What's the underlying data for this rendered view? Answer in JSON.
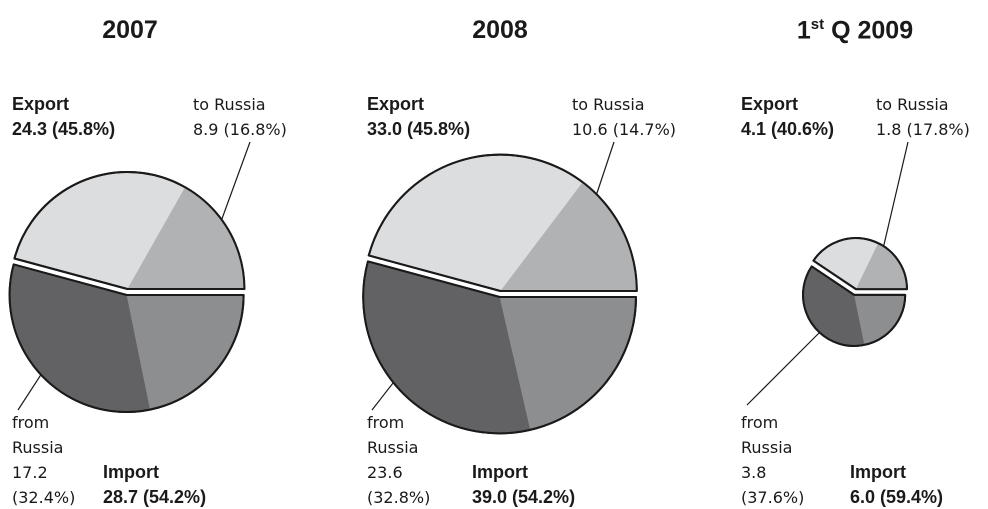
{
  "chart_data": [
    {
      "type": "pie",
      "title": "2007",
      "categories": [
        "Export",
        "to Russia",
        "from Russia",
        "Import"
      ],
      "values": [
        24.3,
        8.9,
        17.2,
        28.7
      ],
      "percents": [
        45.8,
        16.8,
        32.4,
        54.2
      ],
      "value_labels": [
        "24.3 (45.8%)",
        "8.9 (16.8%)",
        "17.2 (32.4%)",
        "28.7 (54.2%)"
      ],
      "colors": [
        "#dcdddf",
        "#b1b2b4",
        "#626264",
        "#8d8e90"
      ]
    },
    {
      "type": "pie",
      "title": "2008",
      "categories": [
        "Export",
        "to Russia",
        "from Russia",
        "Import"
      ],
      "values": [
        33.0,
        10.6,
        23.6,
        39.0
      ],
      "percents": [
        45.8,
        14.7,
        32.8,
        54.2
      ],
      "value_labels": [
        "33.0 (45.8%)",
        "10.6 (14.7%)",
        "23.6 (32.8%)",
        "39.0 (54.2%)"
      ],
      "colors": [
        "#dcdddf",
        "#b1b2b4",
        "#626264",
        "#8d8e90"
      ]
    },
    {
      "type": "pie",
      "title": {
        "text": "1",
        "superscript": "st",
        "rest": "Q 2009"
      },
      "categories": [
        "Export",
        "to Russia",
        "from Russia",
        "Import"
      ],
      "values": [
        4.1,
        1.8,
        3.8,
        6.0
      ],
      "percents": [
        40.6,
        17.8,
        37.6,
        59.4
      ],
      "value_labels": [
        "4.1 (40.6%)",
        "1.8 (17.8%)",
        "3.8 (37.6%)",
        "6.0 (59.4%)"
      ],
      "colors": [
        "#dcdddf",
        "#b1b2b4",
        "#626264",
        "#8d8e90"
      ]
    }
  ]
}
